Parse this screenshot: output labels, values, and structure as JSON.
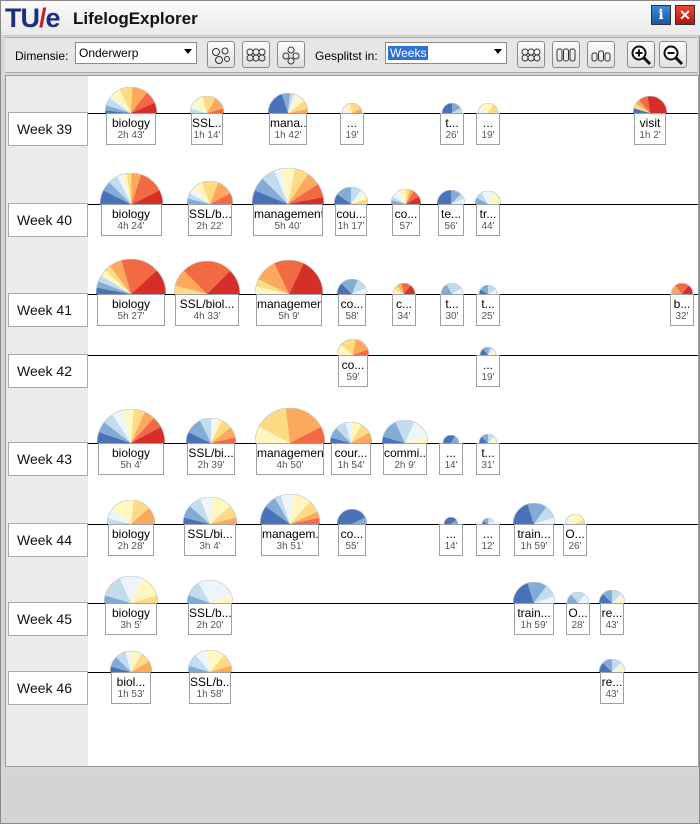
{
  "app": {
    "logo_tu": "TU",
    "logo_slash": "/",
    "logo_e": "e",
    "title": "LifelogExplorer",
    "info_label": "i",
    "close_label": "✕"
  },
  "toolbar": {
    "dimension_label": "Dimensie:",
    "dimension_value": "Onderwerp",
    "split_label": "Gesplitst in:",
    "split_value": "Weeks",
    "icons": [
      "circles-loose-icon",
      "circles-grid-icon",
      "circles-cluster-icon",
      "circles-grid-icon",
      "columns-icon",
      "bars-icon",
      "zoom-in-icon",
      "zoom-out-icon"
    ]
  },
  "colors": {
    "palette": [
      "#4a72b8",
      "#82acd6",
      "#c1dcec",
      "#eef5fa",
      "#fff7bf",
      "#fddb85",
      "#fca95d",
      "#f26a43",
      "#d62f28"
    ]
  },
  "weeks": [
    {
      "label": "Week 39",
      "items": [
        {
          "label": "biology",
          "duration": "2h 43'",
          "minutes": 163,
          "slices": [
            1,
            2,
            3,
            1,
            4,
            5,
            6,
            5,
            4
          ]
        },
        {
          "label": "SSL...",
          "duration": "1h 14'",
          "minutes": 74,
          "slices": [
            0,
            0,
            1,
            1,
            3,
            3,
            3,
            1,
            0
          ]
        },
        {
          "label": "mana...",
          "duration": "1h 42'",
          "minutes": 102,
          "slices": [
            6,
            2,
            1,
            1,
            2,
            2,
            1,
            0,
            0
          ]
        },
        {
          "label": "...",
          "duration": "19'",
          "minutes": 19,
          "slices": [
            0,
            0,
            0,
            1,
            2,
            3,
            1,
            0,
            0
          ]
        },
        {
          "label": "t...",
          "duration": "26'",
          "minutes": 26,
          "slices": [
            3,
            2,
            1,
            0,
            0,
            0,
            0,
            0,
            0
          ]
        },
        {
          "label": "...",
          "duration": "19'",
          "minutes": 19,
          "slices": [
            0,
            0,
            0,
            1,
            3,
            2,
            0,
            0,
            0
          ]
        },
        {
          "label": "visit",
          "duration": "1h 2'",
          "minutes": 62,
          "slices": [
            1,
            0,
            0,
            0,
            0,
            1,
            1,
            2,
            6
          ]
        }
      ]
    },
    {
      "label": "Week 40",
      "items": [
        {
          "label": "biology",
          "duration": "4h 24'",
          "minutes": 264,
          "slices": [
            3,
            2,
            2,
            1,
            1,
            1,
            2,
            5,
            3
          ]
        },
        {
          "label": "SSL/b...",
          "duration": "2h 22'",
          "minutes": 142,
          "slices": [
            0,
            1,
            1,
            1,
            2,
            3,
            3,
            2,
            0
          ]
        },
        {
          "label": "management",
          "duration": "5h 40'",
          "minutes": 340,
          "slices": [
            2,
            2,
            2,
            1,
            2,
            2,
            2,
            2,
            1
          ]
        },
        {
          "label": "cou...",
          "duration": "1h 17'",
          "minutes": 77,
          "slices": [
            2,
            3,
            2,
            1,
            1,
            1,
            0,
            0,
            0
          ]
        },
        {
          "label": "co...",
          "duration": "57'",
          "minutes": 57,
          "slices": [
            0,
            1,
            1,
            2,
            2,
            1,
            1,
            2,
            2
          ]
        },
        {
          "label": "te...",
          "duration": "56'",
          "minutes": 56,
          "slices": [
            4,
            2,
            1,
            1,
            0,
            0,
            0,
            0,
            0
          ]
        },
        {
          "label": "tr...",
          "duration": "44'",
          "minutes": 44,
          "slices": [
            0,
            1,
            1,
            2,
            2,
            0,
            0,
            0,
            0
          ]
        }
      ]
    },
    {
      "label": "Week 41",
      "items": [
        {
          "label": "biology",
          "duration": "5h 27'",
          "minutes": 327,
          "slices": [
            1,
            1,
            1,
            0,
            1,
            1,
            2,
            6,
            4
          ]
        },
        {
          "label": "SSL/biol...",
          "duration": "4h 33'",
          "minutes": 273,
          "slices": [
            0,
            0,
            0,
            0,
            0,
            1,
            2,
            6,
            3
          ]
        },
        {
          "label": "management",
          "duration": "5h 9'",
          "minutes": 309,
          "slices": [
            0,
            0,
            0,
            0,
            1,
            1,
            3,
            4,
            5
          ]
        },
        {
          "label": "co...",
          "duration": "58'",
          "minutes": 58,
          "slices": [
            2,
            3,
            2,
            1,
            0,
            0,
            0,
            0,
            0
          ]
        },
        {
          "label": "c...",
          "duration": "34'",
          "minutes": 34,
          "slices": [
            0,
            0,
            0,
            0,
            1,
            1,
            1,
            2,
            2
          ]
        },
        {
          "label": "t...",
          "duration": "30'",
          "minutes": 30,
          "slices": [
            0,
            2,
            3,
            1,
            0,
            0,
            0,
            0,
            0
          ]
        },
        {
          "label": "t...",
          "duration": "25'",
          "minutes": 25,
          "slices": [
            1,
            2,
            2,
            1,
            0,
            0,
            0,
            0,
            0
          ]
        },
        {
          "label": "b...",
          "duration": "32'",
          "minutes": 32,
          "slices": [
            0,
            0,
            0,
            0,
            0,
            0,
            2,
            3,
            2
          ]
        }
      ]
    },
    {
      "label": "Week 42",
      "items": [
        {
          "label": "co...",
          "duration": "59'",
          "minutes": 59,
          "slices": [
            0,
            0,
            0,
            0,
            2,
            3,
            3,
            1,
            0
          ]
        },
        {
          "label": "...",
          "duration": "19'",
          "minutes": 19,
          "slices": [
            2,
            2,
            1,
            1,
            1,
            0,
            0,
            0,
            0
          ]
        }
      ]
    },
    {
      "label": "Week 43",
      "items": [
        {
          "label": "biology",
          "duration": "5h 4'",
          "minutes": 304,
          "slices": [
            2,
            2,
            2,
            2,
            2,
            2,
            2,
            2,
            3
          ]
        },
        {
          "label": "SSL/bi...",
          "duration": "2h 39'",
          "minutes": 159,
          "slices": [
            2,
            3,
            2,
            1,
            1,
            2,
            2,
            1,
            0
          ]
        },
        {
          "label": "management",
          "duration": "4h 50'",
          "minutes": 290,
          "slices": [
            0,
            0,
            0,
            0,
            2,
            4,
            5,
            2,
            0
          ]
        },
        {
          "label": "cour...",
          "duration": "1h 54'",
          "minutes": 114,
          "slices": [
            1,
            2,
            2,
            1,
            2,
            2,
            2,
            0,
            0
          ]
        },
        {
          "label": "commi...",
          "duration": "2h 9'",
          "minutes": 129,
          "slices": [
            1,
            3,
            3,
            3,
            1,
            0,
            0,
            0,
            0
          ]
        },
        {
          "label": "...",
          "duration": "14'",
          "minutes": 14,
          "slices": [
            4,
            2,
            0,
            0,
            0,
            0,
            0,
            0,
            0
          ]
        },
        {
          "label": "t...",
          "duration": "31'",
          "minutes": 31,
          "slices": [
            2,
            2,
            2,
            1,
            1,
            0,
            0,
            0,
            0
          ]
        }
      ]
    },
    {
      "label": "Week 44",
      "items": [
        {
          "label": "biology",
          "duration": "2h 28'",
          "minutes": 148,
          "slices": [
            0,
            0,
            1,
            2,
            4,
            3,
            3,
            0,
            0
          ]
        },
        {
          "label": "SSL/bi...",
          "duration": "3h 4'",
          "minutes": 184,
          "slices": [
            1,
            2,
            2,
            2,
            3,
            2,
            1,
            0,
            0
          ]
        },
        {
          "label": "managem...",
          "duration": "3h 51'",
          "minutes": 231,
          "slices": [
            3,
            2,
            1,
            2,
            3,
            2,
            1,
            1,
            0
          ]
        },
        {
          "label": "co...",
          "duration": "55'",
          "minutes": 55,
          "slices": [
            6,
            1,
            0,
            0,
            0,
            0,
            0,
            0,
            0
          ]
        },
        {
          "label": "...",
          "duration": "14'",
          "minutes": 14,
          "slices": [
            4,
            1,
            0,
            0,
            0,
            0,
            0,
            0,
            0
          ]
        },
        {
          "label": "...",
          "duration": "12'",
          "minutes": 12,
          "slices": [
            1,
            2,
            2,
            1,
            0,
            0,
            0,
            0,
            0
          ]
        },
        {
          "label": "train...",
          "duration": "1h 59'",
          "minutes": 119,
          "slices": [
            4,
            3,
            2,
            1,
            0,
            0,
            0,
            0,
            0
          ]
        },
        {
          "label": "O...",
          "duration": "26'",
          "minutes": 26,
          "slices": [
            0,
            0,
            0,
            1,
            4,
            1,
            0,
            0,
            0
          ]
        }
      ]
    },
    {
      "label": "Week 45",
      "items": [
        {
          "label": "biology",
          "duration": "3h 5'",
          "minutes": 185,
          "slices": [
            0,
            1,
            3,
            3,
            3,
            1,
            0,
            0,
            0
          ]
        },
        {
          "label": "SSL/b...",
          "duration": "2h 20'",
          "minutes": 140,
          "slices": [
            0,
            1,
            2,
            5,
            1,
            0,
            0,
            0,
            0
          ]
        },
        {
          "label": "train...",
          "duration": "1h 59'",
          "minutes": 119,
          "slices": [
            4,
            3,
            2,
            1,
            0,
            0,
            0,
            0,
            0
          ]
        },
        {
          "label": "O...",
          "duration": "28'",
          "minutes": 28,
          "slices": [
            0,
            2,
            3,
            2,
            0,
            0,
            0,
            0,
            0
          ]
        },
        {
          "label": "re...",
          "duration": "43'",
          "minutes": 43,
          "slices": [
            2,
            2,
            2,
            1,
            1,
            0,
            0,
            0,
            0
          ]
        }
      ]
    },
    {
      "label": "Week 46",
      "items": [
        {
          "label": "biol...",
          "duration": "1h 53'",
          "minutes": 113,
          "slices": [
            1,
            2,
            2,
            1,
            2,
            2,
            2,
            0,
            0
          ]
        },
        {
          "label": "SSL/b...",
          "duration": "1h 58'",
          "minutes": 118,
          "slices": [
            0,
            1,
            2,
            2,
            3,
            2,
            1,
            0,
            0
          ]
        },
        {
          "label": "re...",
          "duration": "43'",
          "minutes": 43,
          "slices": [
            2,
            2,
            2,
            1,
            1,
            0,
            0,
            0,
            0
          ]
        }
      ]
    }
  ]
}
